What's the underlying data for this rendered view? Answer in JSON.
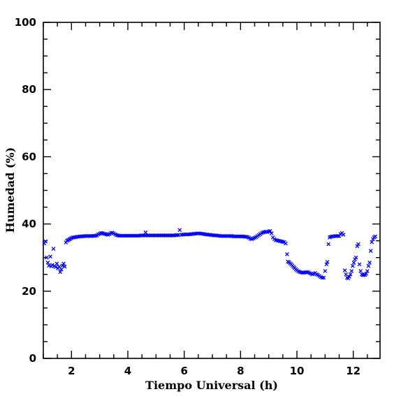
{
  "chart_data": {
    "type": "scatter",
    "title": "",
    "xlabel": "Tiempo Universal (h)",
    "ylabel": "Humedad (%)",
    "xlim": [
      1.0,
      12.95
    ],
    "ylim": [
      0,
      100
    ],
    "x_ticks": [
      2,
      4,
      6,
      8,
      10,
      12
    ],
    "y_ticks": [
      0,
      20,
      40,
      60,
      80,
      100
    ],
    "marker": "x",
    "marker_color": "#0000ff",
    "grid": false,
    "legend": "none",
    "points": [
      [
        1.03,
        34.2
      ],
      [
        1.08,
        34.8
      ],
      [
        1.12,
        30.0
      ],
      [
        1.16,
        28.5
      ],
      [
        1.2,
        27.6
      ],
      [
        1.25,
        30.3
      ],
      [
        1.28,
        27.4
      ],
      [
        1.32,
        27.8
      ],
      [
        1.36,
        32.6
      ],
      [
        1.4,
        27.5
      ],
      [
        1.44,
        27.2
      ],
      [
        1.48,
        28.2
      ],
      [
        1.52,
        26.8
      ],
      [
        1.56,
        27.3
      ],
      [
        1.6,
        25.7
      ],
      [
        1.64,
        26.5
      ],
      [
        1.68,
        27.6
      ],
      [
        1.72,
        28.2
      ],
      [
        1.76,
        27.3
      ],
      [
        1.8,
        34.5
      ],
      [
        1.84,
        35.0
      ],
      [
        1.88,
        35.2
      ],
      [
        1.92,
        35.4
      ],
      [
        1.96,
        35.6
      ],
      [
        2.0,
        35.8
      ],
      [
        2.05,
        36.0
      ],
      [
        2.1,
        36.0
      ],
      [
        2.15,
        36.1
      ],
      [
        2.2,
        36.2
      ],
      [
        2.25,
        36.2
      ],
      [
        2.3,
        36.3
      ],
      [
        2.35,
        36.3
      ],
      [
        2.4,
        36.3
      ],
      [
        2.45,
        36.4
      ],
      [
        2.5,
        36.4
      ],
      [
        2.55,
        36.4
      ],
      [
        2.6,
        36.4
      ],
      [
        2.65,
        36.4
      ],
      [
        2.7,
        36.4
      ],
      [
        2.75,
        36.4
      ],
      [
        2.8,
        36.5
      ],
      [
        2.85,
        36.5
      ],
      [
        2.9,
        36.6
      ],
      [
        2.95,
        36.9
      ],
      [
        3.0,
        37.1
      ],
      [
        3.05,
        37.3
      ],
      [
        3.1,
        37.3
      ],
      [
        3.15,
        37.1
      ],
      [
        3.2,
        37.0
      ],
      [
        3.25,
        36.9
      ],
      [
        3.3,
        36.8
      ],
      [
        3.35,
        37.0
      ],
      [
        3.4,
        37.3
      ],
      [
        3.45,
        37.4
      ],
      [
        3.5,
        37.2
      ],
      [
        3.55,
        36.9
      ],
      [
        3.6,
        36.7
      ],
      [
        3.65,
        36.6
      ],
      [
        3.7,
        36.5
      ],
      [
        3.75,
        36.5
      ],
      [
        3.8,
        36.5
      ],
      [
        3.85,
        36.5
      ],
      [
        3.9,
        36.5
      ],
      [
        3.95,
        36.5
      ],
      [
        4.0,
        36.5
      ],
      [
        4.05,
        36.5
      ],
      [
        4.1,
        36.5
      ],
      [
        4.15,
        36.5
      ],
      [
        4.2,
        36.5
      ],
      [
        4.25,
        36.5
      ],
      [
        4.3,
        36.5
      ],
      [
        4.35,
        36.5
      ],
      [
        4.4,
        36.5
      ],
      [
        4.45,
        36.6
      ],
      [
        4.5,
        36.6
      ],
      [
        4.55,
        36.6
      ],
      [
        4.6,
        36.6
      ],
      [
        4.63,
        37.5
      ],
      [
        4.65,
        36.6
      ],
      [
        4.7,
        36.6
      ],
      [
        4.75,
        36.6
      ],
      [
        4.8,
        36.6
      ],
      [
        4.85,
        36.6
      ],
      [
        4.9,
        36.6
      ],
      [
        4.95,
        36.6
      ],
      [
        5.0,
        36.6
      ],
      [
        5.05,
        36.6
      ],
      [
        5.1,
        36.6
      ],
      [
        5.15,
        36.6
      ],
      [
        5.2,
        36.6
      ],
      [
        5.25,
        36.6
      ],
      [
        5.3,
        36.6
      ],
      [
        5.35,
        36.6
      ],
      [
        5.4,
        36.6
      ],
      [
        5.45,
        36.6
      ],
      [
        5.5,
        36.6
      ],
      [
        5.55,
        36.6
      ],
      [
        5.6,
        36.6
      ],
      [
        5.65,
        36.6
      ],
      [
        5.7,
        36.7
      ],
      [
        5.75,
        36.7
      ],
      [
        5.8,
        36.7
      ],
      [
        5.84,
        38.2
      ],
      [
        5.9,
        36.8
      ],
      [
        5.95,
        36.8
      ],
      [
        6.0,
        36.9
      ],
      [
        6.05,
        36.9
      ],
      [
        6.1,
        36.9
      ],
      [
        6.15,
        36.9
      ],
      [
        6.2,
        36.9
      ],
      [
        6.25,
        37.0
      ],
      [
        6.3,
        37.0
      ],
      [
        6.35,
        37.1
      ],
      [
        6.4,
        37.1
      ],
      [
        6.45,
        37.2
      ],
      [
        6.5,
        37.2
      ],
      [
        6.55,
        37.2
      ],
      [
        6.6,
        37.1
      ],
      [
        6.65,
        37.1
      ],
      [
        6.7,
        37.0
      ],
      [
        6.75,
        36.9
      ],
      [
        6.8,
        36.9
      ],
      [
        6.85,
        36.8
      ],
      [
        6.9,
        36.8
      ],
      [
        6.95,
        36.7
      ],
      [
        7.0,
        36.7
      ],
      [
        7.05,
        36.6
      ],
      [
        7.1,
        36.6
      ],
      [
        7.15,
        36.6
      ],
      [
        7.2,
        36.5
      ],
      [
        7.25,
        36.5
      ],
      [
        7.3,
        36.4
      ],
      [
        7.35,
        36.4
      ],
      [
        7.4,
        36.4
      ],
      [
        7.45,
        36.4
      ],
      [
        7.5,
        36.4
      ],
      [
        7.55,
        36.4
      ],
      [
        7.6,
        36.4
      ],
      [
        7.65,
        36.4
      ],
      [
        7.7,
        36.4
      ],
      [
        7.75,
        36.3
      ],
      [
        7.8,
        36.3
      ],
      [
        7.85,
        36.3
      ],
      [
        7.9,
        36.3
      ],
      [
        7.95,
        36.3
      ],
      [
        8.0,
        36.3
      ],
      [
        8.05,
        36.3
      ],
      [
        8.1,
        36.3
      ],
      [
        8.15,
        36.2
      ],
      [
        8.2,
        36.2
      ],
      [
        8.25,
        36.1
      ],
      [
        8.3,
        35.9
      ],
      [
        8.35,
        35.6
      ],
      [
        8.4,
        35.5
      ],
      [
        8.45,
        35.7
      ],
      [
        8.5,
        35.9
      ],
      [
        8.55,
        36.1
      ],
      [
        8.6,
        36.4
      ],
      [
        8.65,
        36.7
      ],
      [
        8.7,
        37.0
      ],
      [
        8.75,
        37.3
      ],
      [
        8.8,
        37.5
      ],
      [
        8.85,
        37.6
      ],
      [
        8.9,
        37.7
      ],
      [
        8.95,
        37.6
      ],
      [
        9.0,
        37.8
      ],
      [
        9.05,
        37.9
      ],
      [
        9.1,
        37.2
      ],
      [
        9.15,
        36.0
      ],
      [
        9.2,
        35.5
      ],
      [
        9.25,
        35.2
      ],
      [
        9.3,
        35.1
      ],
      [
        9.35,
        35.0
      ],
      [
        9.4,
        34.9
      ],
      [
        9.45,
        34.8
      ],
      [
        9.5,
        34.7
      ],
      [
        9.55,
        34.6
      ],
      [
        9.6,
        34.2
      ],
      [
        9.65,
        31.0
      ],
      [
        9.68,
        28.8
      ],
      [
        9.72,
        28.6
      ],
      [
        9.76,
        28.3
      ],
      [
        9.8,
        28.0
      ],
      [
        9.84,
        27.6
      ],
      [
        9.88,
        27.2
      ],
      [
        9.92,
        26.9
      ],
      [
        9.96,
        26.5
      ],
      [
        10.0,
        26.2
      ],
      [
        10.05,
        25.9
      ],
      [
        10.1,
        25.7
      ],
      [
        10.15,
        25.6
      ],
      [
        10.2,
        25.5
      ],
      [
        10.25,
        25.5
      ],
      [
        10.3,
        25.6
      ],
      [
        10.35,
        25.7
      ],
      [
        10.4,
        25.6
      ],
      [
        10.45,
        25.4
      ],
      [
        10.5,
        25.2
      ],
      [
        10.55,
        25.0
      ],
      [
        10.6,
        25.2
      ],
      [
        10.65,
        25.4
      ],
      [
        10.7,
        25.0
      ],
      [
        10.75,
        24.8
      ],
      [
        10.8,
        24.5
      ],
      [
        10.85,
        24.2
      ],
      [
        10.9,
        24.0
      ],
      [
        10.95,
        24.0
      ],
      [
        11.0,
        26.0
      ],
      [
        11.05,
        28.0
      ],
      [
        11.08,
        28.7
      ],
      [
        11.12,
        34.0
      ],
      [
        11.16,
        36.0
      ],
      [
        11.2,
        36.2
      ],
      [
        11.25,
        36.3
      ],
      [
        11.3,
        36.3
      ],
      [
        11.35,
        36.4
      ],
      [
        11.4,
        36.4
      ],
      [
        11.45,
        36.4
      ],
      [
        11.5,
        36.4
      ],
      [
        11.55,
        37.0
      ],
      [
        11.6,
        37.3
      ],
      [
        11.65,
        36.8
      ],
      [
        11.7,
        26.2
      ],
      [
        11.74,
        25.0
      ],
      [
        11.78,
        24.0
      ],
      [
        11.82,
        23.8
      ],
      [
        11.86,
        24.3
      ],
      [
        11.9,
        25.0
      ],
      [
        11.94,
        26.0
      ],
      [
        11.98,
        27.5
      ],
      [
        12.02,
        28.5
      ],
      [
        12.06,
        29.5
      ],
      [
        12.1,
        30.0
      ],
      [
        12.14,
        33.4
      ],
      [
        12.18,
        34.0
      ],
      [
        12.22,
        28.0
      ],
      [
        12.26,
        26.0
      ],
      [
        12.3,
        25.0
      ],
      [
        12.34,
        24.8
      ],
      [
        12.38,
        24.8
      ],
      [
        12.42,
        24.9
      ],
      [
        12.46,
        25.2
      ],
      [
        12.5,
        26.0
      ],
      [
        12.54,
        27.5
      ],
      [
        12.58,
        28.5
      ],
      [
        12.62,
        32.0
      ],
      [
        12.66,
        34.6
      ],
      [
        12.7,
        35.5
      ],
      [
        12.74,
        36.0
      ],
      [
        12.78,
        36.3
      ]
    ]
  }
}
